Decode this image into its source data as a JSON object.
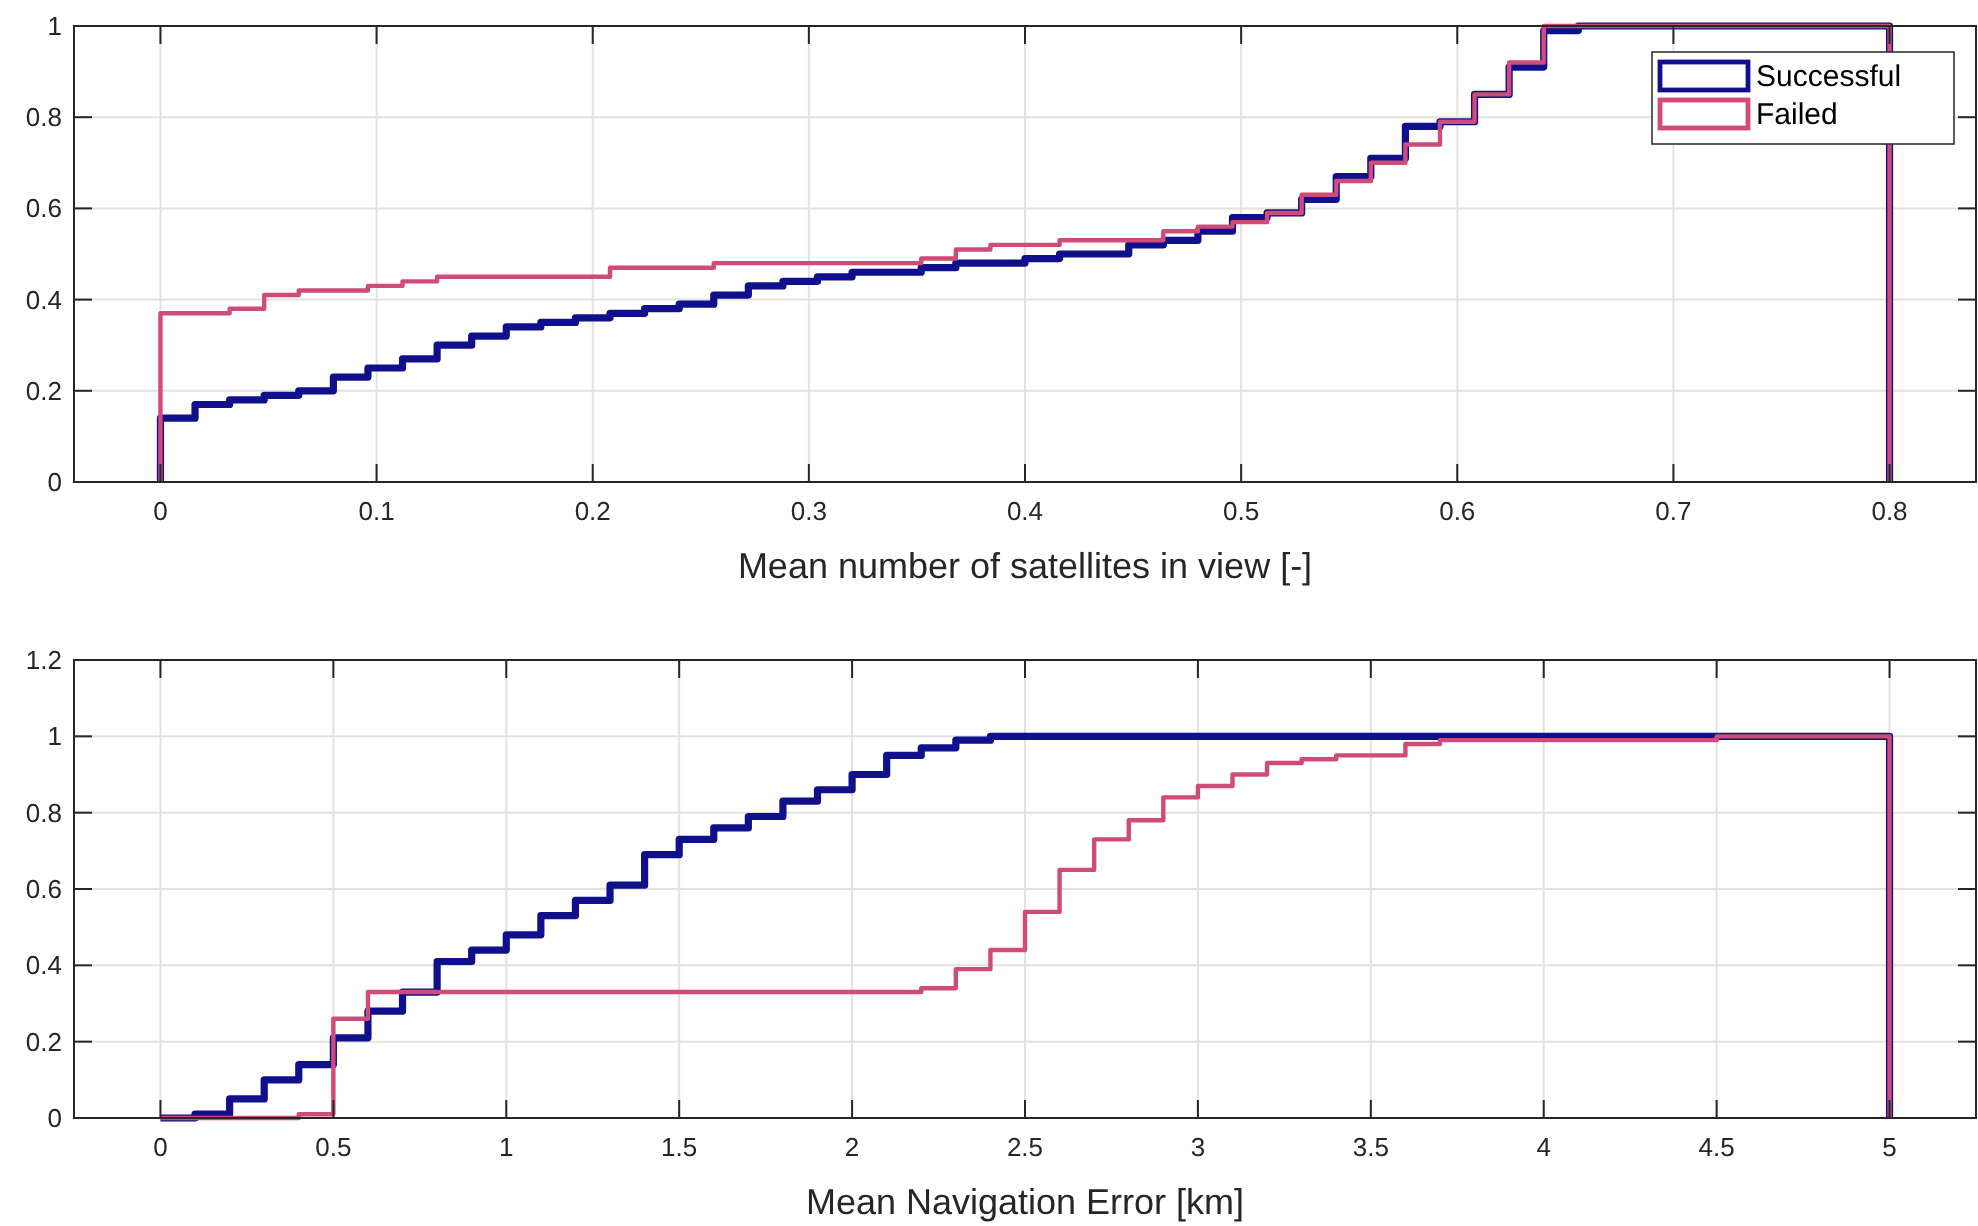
{
  "chart_data": [
    {
      "type": "step",
      "xlabel": "Mean number of satellites in view [-]",
      "series": [
        {
          "name": "Successful",
          "color": "#10108c",
          "x": [
            0,
            0,
            0.016,
            0.032,
            0.048,
            0.064,
            0.08,
            0.096,
            0.112,
            0.128,
            0.144,
            0.16,
            0.176,
            0.192,
            0.208,
            0.224,
            0.24,
            0.256,
            0.272,
            0.288,
            0.304,
            0.32,
            0.352,
            0.368,
            0.4,
            0.416,
            0.448,
            0.464,
            0.48,
            0.496,
            0.512,
            0.528,
            0.544,
            0.56,
            0.576,
            0.592,
            0.608,
            0.624,
            0.64,
            0.656,
            0.8,
            0.8
          ],
          "values": [
            0,
            0.14,
            0.17,
            0.18,
            0.19,
            0.2,
            0.23,
            0.25,
            0.27,
            0.3,
            0.32,
            0.34,
            0.35,
            0.36,
            0.37,
            0.38,
            0.39,
            0.41,
            0.43,
            0.44,
            0.45,
            0.46,
            0.47,
            0.48,
            0.49,
            0.5,
            0.52,
            0.53,
            0.55,
            0.58,
            0.59,
            0.62,
            0.67,
            0.71,
            0.78,
            0.79,
            0.85,
            0.91,
            0.99,
            1,
            1,
            0
          ]
        },
        {
          "name": "Failed",
          "color": "#d04a7a",
          "x": [
            0,
            0,
            0.032,
            0.048,
            0.064,
            0.096,
            0.112,
            0.128,
            0.208,
            0.256,
            0.352,
            0.368,
            0.384,
            0.416,
            0.464,
            0.48,
            0.496,
            0.512,
            0.528,
            0.544,
            0.56,
            0.576,
            0.592,
            0.608,
            0.624,
            0.64,
            0.8,
            0.8
          ],
          "values": [
            0,
            0.37,
            0.38,
            0.41,
            0.42,
            0.43,
            0.44,
            0.45,
            0.47,
            0.48,
            0.49,
            0.51,
            0.52,
            0.53,
            0.55,
            0.56,
            0.57,
            0.59,
            0.63,
            0.66,
            0.7,
            0.74,
            0.79,
            0.85,
            0.92,
            1,
            1,
            0
          ]
        }
      ],
      "xlim": [
        -0.04,
        0.84
      ],
      "xticks": [
        0,
        0.1,
        0.2,
        0.3,
        0.4,
        0.5,
        0.6,
        0.7,
        0.8
      ],
      "ylim": [
        0,
        1
      ],
      "yticks": [
        0,
        0.2,
        0.4,
        0.6,
        0.8,
        1
      ],
      "grid": true,
      "legend": "top right"
    },
    {
      "type": "step",
      "xlabel": "Mean Navigation Error [km]",
      "series": [
        {
          "color": "#10108c",
          "x": [
            0,
            0.1,
            0.2,
            0.3,
            0.4,
            0.5,
            0.6,
            0.7,
            0.8,
            0.9,
            1,
            1.1,
            1.2,
            1.3,
            1.4,
            1.5,
            1.6,
            1.7,
            1.8,
            1.9,
            2,
            2.1,
            2.2,
            2.3,
            2.4,
            5,
            5
          ],
          "values": [
            0,
            0.01,
            0.05,
            0.1,
            0.14,
            0.21,
            0.28,
            0.33,
            0.41,
            0.44,
            0.48,
            0.53,
            0.57,
            0.61,
            0.69,
            0.73,
            0.76,
            0.79,
            0.83,
            0.86,
            0.9,
            0.95,
            0.97,
            0.99,
            1,
            1,
            0
          ]
        },
        {
          "color": "#d04a7a",
          "x": [
            0,
            0.4,
            0.5,
            0.6,
            2.2,
            2.3,
            2.4,
            2.5,
            2.6,
            2.7,
            2.8,
            2.9,
            3,
            3.1,
            3.2,
            3.3,
            3.4,
            3.6,
            3.7,
            4.5,
            5,
            5
          ],
          "values": [
            0,
            0.01,
            0.26,
            0.33,
            0.34,
            0.39,
            0.44,
            0.54,
            0.65,
            0.73,
            0.78,
            0.84,
            0.87,
            0.9,
            0.93,
            0.94,
            0.95,
            0.98,
            0.99,
            1,
            1,
            0
          ]
        }
      ],
      "xlim": [
        -0.25,
        5.25
      ],
      "xticks": [
        0,
        0.5,
        1,
        1.5,
        2,
        2.5,
        3,
        3.5,
        4,
        4.5,
        5
      ],
      "ylim": [
        0,
        1.2
      ],
      "yticks": [
        0,
        0.2,
        0.4,
        0.6,
        0.8,
        1,
        1.2
      ],
      "grid": true
    }
  ]
}
